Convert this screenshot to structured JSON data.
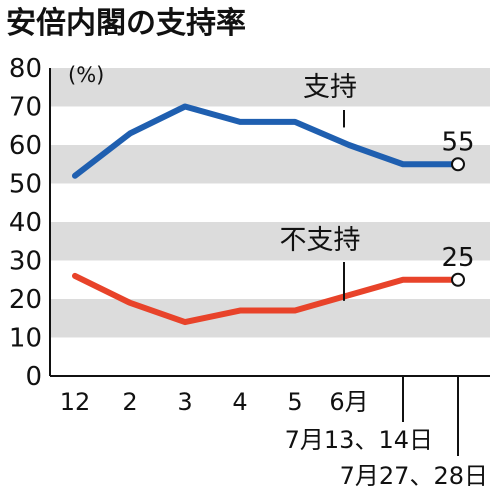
{
  "chart_data": {
    "type": "line",
    "title": "安倍内閣の支持率",
    "unit_label": "(%)",
    "ylim": [
      0,
      80
    ],
    "yticks": [
      "0",
      "10",
      "20",
      "30",
      "40",
      "50",
      "60",
      "70",
      "80"
    ],
    "bands": [
      [
        10,
        20
      ],
      [
        30,
        40
      ],
      [
        50,
        60
      ],
      [
        70,
        80
      ]
    ],
    "x_labels": [
      "12",
      "2",
      "3",
      "4",
      "5",
      "6月",
      "7月13、14日",
      "7月27、28日"
    ],
    "series": [
      {
        "name": "支持",
        "color": "#1f5fb0",
        "values": [
          52,
          63,
          70,
          66,
          66,
          60,
          55,
          55
        ],
        "end_label": "55"
      },
      {
        "name": "不支持",
        "color": "#e8432a",
        "values": [
          26,
          19,
          14,
          17,
          17,
          21,
          25,
          25
        ],
        "end_label": "25"
      }
    ]
  }
}
